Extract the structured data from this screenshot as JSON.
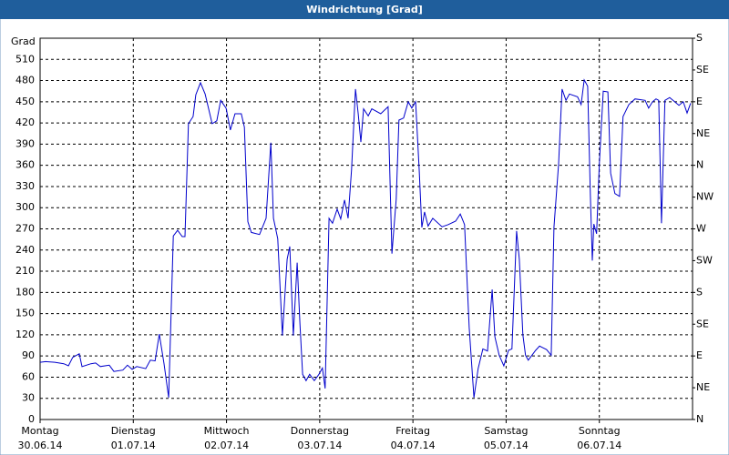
{
  "chart_data": {
    "type": "line",
    "title": "Windrichtung [Grad]",
    "y_label": "Grad",
    "x": [
      0,
      1.4,
      3.8,
      6.1,
      7.3,
      8.4,
      10.1,
      10.8,
      13.1,
      14.3,
      15.5,
      17.8,
      19.0,
      21.3,
      22.5,
      23.7,
      24.9,
      27.2,
      28.4,
      29.6,
      30.7,
      31.9,
      33.1,
      34.3,
      35.4,
      36.6,
      37.3,
      38.2,
      39.4,
      40.1,
      41.3,
      42.5,
      44.3,
      45.5,
      46.5,
      47.9,
      49.0,
      50.2,
      51.8,
      52.6,
      53.5,
      54.4,
      56.5,
      58.2,
      59.4,
      60.1,
      61.2,
      62.4,
      63.6,
      64.3,
      65.2,
      66.2,
      66.9,
      67.6,
      68.5,
      69.4,
      70.6,
      71.8,
      72.7,
      73.4,
      74.4,
      75.3,
      76.5,
      77.4,
      78.4,
      79.3,
      80.2,
      81.2,
      81.9,
      82.6,
      83.3,
      84.5,
      85.4,
      87.7,
      89.6,
      90.6,
      91.7,
      92.4,
      93.6,
      94.8,
      95.7,
      96.7,
      97.6,
      98.3,
      99.0,
      99.9,
      101.1,
      103.5,
      105.1,
      107.0,
      108.2,
      109.3,
      110.5,
      111.7,
      112.8,
      114.0,
      115.2,
      116.4,
      117.1,
      118.2,
      119.4,
      120.6,
      121.5,
      122.7,
      123.4,
      124.3,
      125.0,
      125.7,
      127.6,
      128.6,
      130.4,
      131.6,
      132.3,
      133.5,
      134.4,
      135.4,
      136.3,
      138.4,
      139.3,
      140.1,
      141.0,
      141.7,
      142.2,
      142.6,
      143.3,
      144.0,
      145.0,
      146.2,
      146.9,
      148.0,
      149.2,
      150.1,
      151.6,
      153.2,
      155.8,
      156.7,
      157.7,
      158.6,
      159.3,
      160.0,
      160.9,
      162.1,
      164.5,
      165.6,
      166.6,
      167.5
    ],
    "series": [
      {
        "name": "Windrichtung",
        "color": "#0000cc",
        "values": [
          81,
          82,
          81,
          79,
          76,
          88,
          93,
          75,
          79,
          80,
          75,
          77,
          68,
          70,
          77,
          71,
          75,
          72,
          84,
          83,
          121,
          79,
          31,
          260,
          268,
          259,
          259,
          419,
          429,
          460,
          477,
          461,
          419,
          423,
          452,
          441,
          410,
          433,
          433,
          414,
          280,
          265,
          262,
          285,
          392,
          285,
          256,
          119,
          227,
          245,
          119,
          222,
          137,
          64,
          55,
          64,
          55,
          64,
          73,
          44,
          285,
          278,
          298,
          284,
          311,
          285,
          354,
          468,
          433,
          393,
          440,
          430,
          440,
          433,
          443,
          235,
          312,
          424,
          427,
          450,
          441,
          450,
          354,
          272,
          294,
          274,
          285,
          273,
          276,
          281,
          291,
          276,
          130,
          31,
          72,
          100,
          97,
          184,
          117,
          91,
          76,
          98,
          100,
          267,
          227,
          120,
          91,
          84,
          98,
          104,
          99,
          91,
          272,
          362,
          468,
          452,
          461,
          457,
          446,
          481,
          472,
          316,
          225,
          277,
          263,
          362,
          465,
          464,
          349,
          320,
          316,
          429,
          446,
          454,
          452,
          441,
          450,
          454,
          452,
          278,
          452,
          456,
          445,
          450,
          434,
          448
        ]
      }
    ],
    "xlim": [
      0,
      168
    ],
    "xticks": [
      {
        "value": 0,
        "label": "Montag",
        "date": "30.06.14"
      },
      {
        "value": 24,
        "label": "Dienstag",
        "date": "01.07.14"
      },
      {
        "value": 48,
        "label": "Mittwoch",
        "date": "02.07.14"
      },
      {
        "value": 72,
        "label": "Donnerstag",
        "date": "03.07.14"
      },
      {
        "value": 96,
        "label": "Freitag",
        "date": "04.07.14"
      },
      {
        "value": 120,
        "label": "Samstag",
        "date": "05.07.14"
      },
      {
        "value": 144,
        "label": "Sonntag",
        "date": "06.07.14"
      }
    ],
    "ylim": [
      0,
      540
    ],
    "yticks": [
      0,
      30,
      60,
      90,
      120,
      150,
      180,
      210,
      240,
      270,
      300,
      330,
      360,
      390,
      420,
      450,
      480,
      510
    ],
    "y2lim": [
      0,
      540
    ],
    "y2ticks": [
      {
        "value": 0,
        "label": "N"
      },
      {
        "value": 45,
        "label": "NE"
      },
      {
        "value": 90,
        "label": "E"
      },
      {
        "value": 135,
        "label": "SE"
      },
      {
        "value": 180,
        "label": "S"
      },
      {
        "value": 225,
        "label": "SW"
      },
      {
        "value": 270,
        "label": "W"
      },
      {
        "value": 315,
        "label": "NW"
      },
      {
        "value": 360,
        "label": "N"
      },
      {
        "value": 405,
        "label": "NE"
      },
      {
        "value": 450,
        "label": "E"
      },
      {
        "value": 495,
        "label": "SE"
      },
      {
        "value": 540,
        "label": "S"
      }
    ],
    "grid": true
  }
}
